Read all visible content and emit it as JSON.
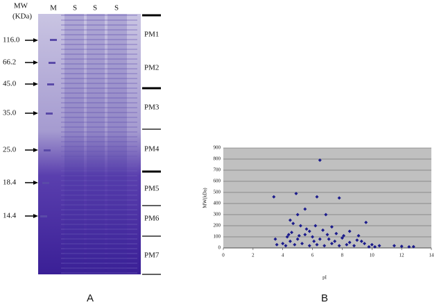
{
  "panel_a": {
    "label": "A",
    "mw_title": "MW",
    "mw_unit": "(KDa)",
    "lanes": [
      "M",
      "S",
      "S",
      "S"
    ],
    "markers": [
      "116.0",
      "66.2",
      "45.0",
      "35.0",
      "25.0",
      "18.4",
      "14.4"
    ],
    "fractions": [
      "PM1",
      "PM2",
      "PM3",
      "PM4",
      "PM5",
      "PM6",
      "PM7"
    ]
  },
  "panel_b": {
    "label": "B"
  },
  "chart_data": {
    "type": "scatter",
    "x_label": "pI",
    "y_label": "MW(kDa)",
    "xlim": [
      0,
      14
    ],
    "xticks": [
      0,
      2,
      4,
      6,
      8,
      10,
      12,
      14
    ],
    "ylim": [
      0,
      900
    ],
    "yticks": [
      0,
      100,
      200,
      300,
      400,
      500,
      600,
      700,
      800,
      900
    ],
    "grid": true,
    "color": "#1c1c8c",
    "x": [
      3.4,
      4.9,
      6.3,
      7.8,
      6.5,
      5.5,
      4.5,
      5.0,
      6.9,
      4.7,
      5.2,
      9.6,
      6.2,
      7.3,
      8.5,
      6.7,
      5.8,
      4.3,
      3.5,
      3.6,
      4.0,
      4.5,
      5.0,
      5.5,
      6.0,
      6.5,
      7.0,
      7.5,
      8.0,
      8.5,
      9.0,
      9.5,
      10.0,
      10.5,
      11.5,
      12.0,
      12.5,
      12.8,
      4.2,
      4.8,
      5.3,
      5.8,
      6.3,
      6.8,
      7.3,
      7.8,
      8.3,
      8.8,
      9.3,
      9.8,
      4.6,
      5.6,
      7.6,
      8.1,
      9.1,
      10.2,
      6.1,
      7.1,
      5.1,
      4.4
    ],
    "values": [
      460,
      490,
      460,
      450,
      790,
      350,
      250,
      300,
      300,
      220,
      200,
      230,
      200,
      190,
      150,
      160,
      150,
      100,
      80,
      30,
      40,
      60,
      80,
      120,
      100,
      80,
      120,
      60,
      90,
      50,
      70,
      40,
      30,
      20,
      20,
      15,
      10,
      12,
      20,
      30,
      40,
      20,
      30,
      20,
      40,
      20,
      30,
      20,
      60,
      10,
      140,
      170,
      130,
      110,
      110,
      10,
      60,
      80,
      110,
      120
    ]
  }
}
